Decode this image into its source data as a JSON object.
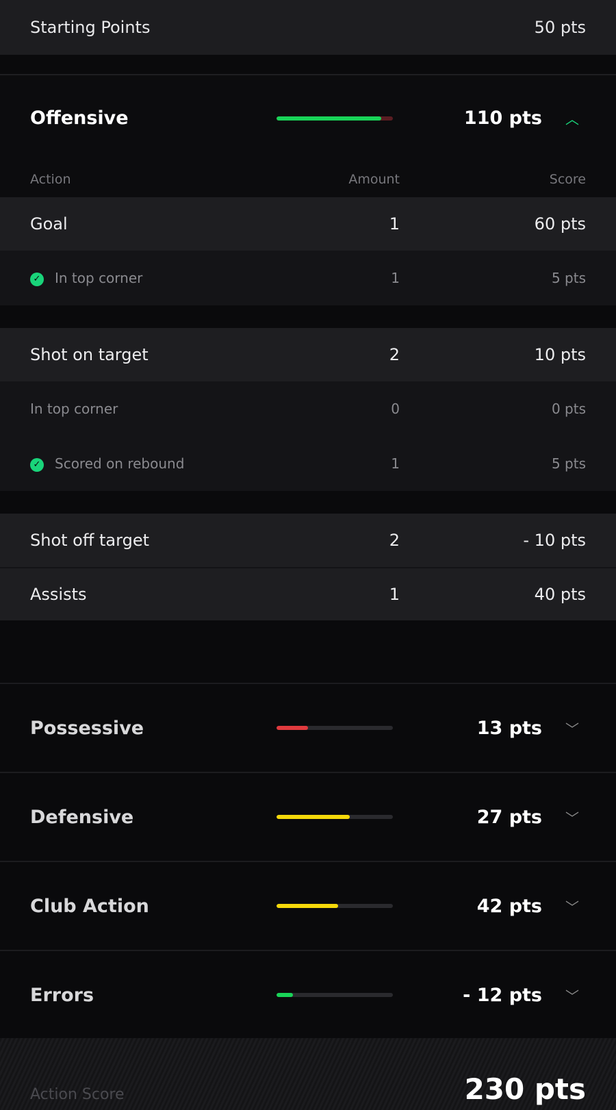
{
  "starting": {
    "label": "Starting Points",
    "value": "50 pts"
  },
  "offensive": {
    "title": "Offensive",
    "score": "110 pts",
    "progress": 0.9,
    "color": "#19d458",
    "expanded": true,
    "columns": {
      "action": "Action",
      "amount": "Amount",
      "score": "Score"
    },
    "groups": [
      {
        "rows": [
          {
            "action": "Goal",
            "amount": "1",
            "score": "60 pts",
            "type": "main"
          },
          {
            "action": "In top corner",
            "amount": "1",
            "score": "5 pts",
            "type": "sub",
            "checked": true
          }
        ]
      },
      {
        "rows": [
          {
            "action": "Shot on target",
            "amount": "2",
            "score": "10 pts",
            "type": "main"
          },
          {
            "action": "In top corner",
            "amount": "0",
            "score": "0 pts",
            "type": "sub",
            "checked": false
          },
          {
            "action": "Scored on rebound",
            "amount": "1",
            "score": "5 pts",
            "type": "sub",
            "checked": true
          }
        ]
      },
      {
        "rows": [
          {
            "action": "Shot off target",
            "amount": "2",
            "score": "- 10 pts",
            "type": "main"
          },
          {
            "action": "Assists",
            "amount": "1",
            "score": "40 pts",
            "type": "main"
          }
        ]
      }
    ]
  },
  "categories": [
    {
      "title": "Possessive",
      "score": "13 pts",
      "progress": 0.27,
      "color": "#e03a3e"
    },
    {
      "title": "Defensive",
      "score": "27 pts",
      "progress": 0.63,
      "color": "#f5d90a"
    },
    {
      "title": "Club Action",
      "score": "42 pts",
      "progress": 0.53,
      "color": "#f5d90a"
    },
    {
      "title": "Errors",
      "score": "- 12 pts",
      "progress": 0.14,
      "color": "#19d458"
    }
  ],
  "footer": {
    "label": "Action Score",
    "value": "230 pts"
  }
}
